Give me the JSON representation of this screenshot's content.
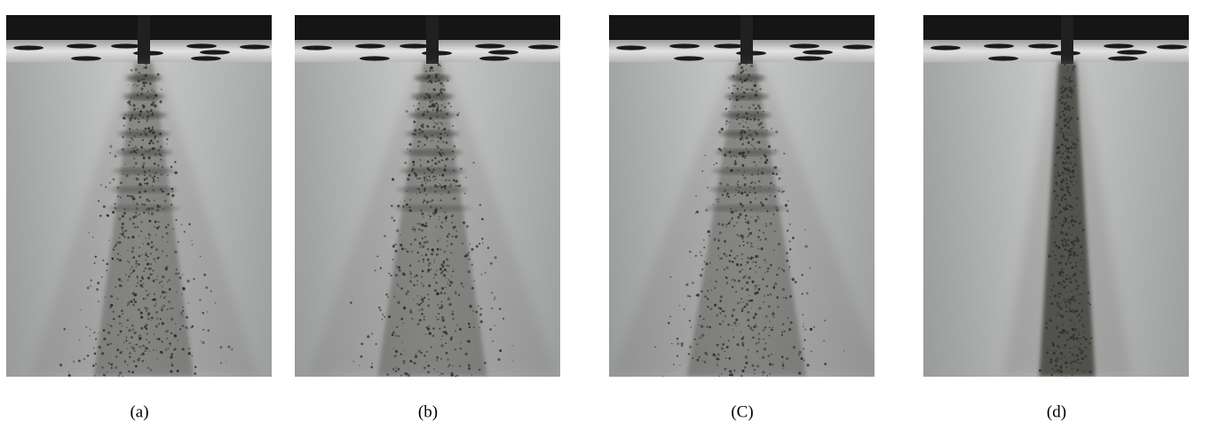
{
  "panels": [
    {
      "caption": "(a)"
    },
    {
      "caption": "(b)"
    },
    {
      "caption": "(C)"
    },
    {
      "caption": "(d)"
    }
  ]
}
